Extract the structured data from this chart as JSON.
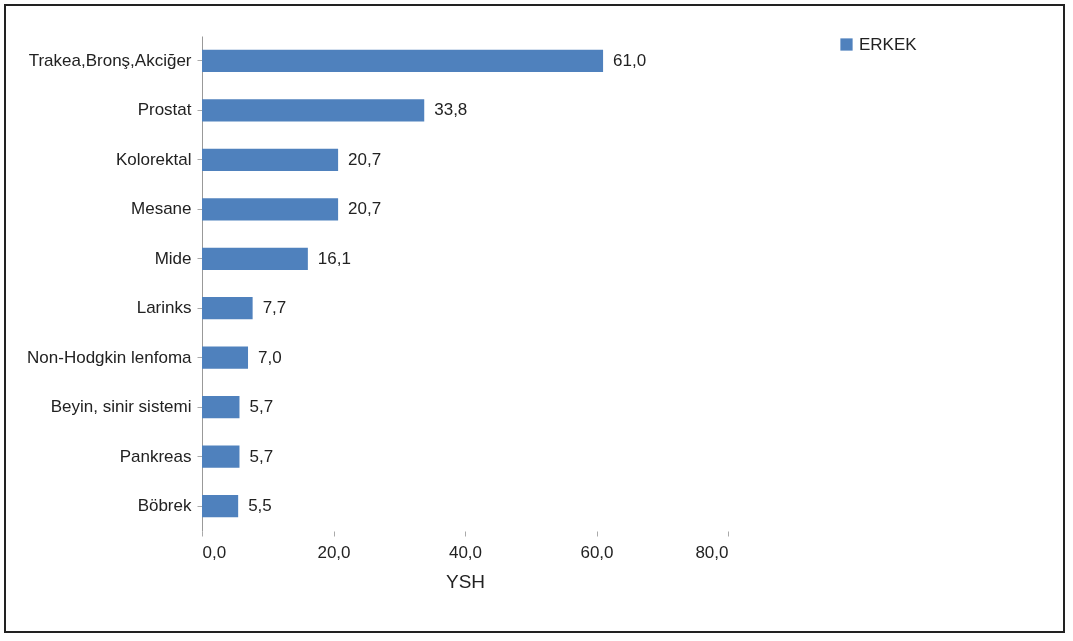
{
  "chart_data": {
    "type": "bar",
    "orientation": "horizontal",
    "xlabel": "YSH",
    "categories": [
      "Trakea,Bronş,Akciğer",
      "Prostat",
      "Kolorektal",
      "Mesane",
      "Mide",
      "Larinks",
      "Non-Hodgkin lenfoma",
      "Beyin, sinir sistemi",
      "Pankreas",
      "Böbrek"
    ],
    "series": [
      {
        "name": "ERKEK",
        "color": "#4f81bd",
        "values": [
          61.0,
          33.8,
          20.7,
          20.7,
          16.1,
          7.7,
          7.0,
          5.7,
          5.7,
          5.5
        ],
        "value_labels": [
          "61,0",
          "33,8",
          "20,7",
          "20,7",
          "16,1",
          "7,7",
          "7,0",
          "5,7",
          "5,7",
          "5,5"
        ]
      }
    ],
    "xlim": [
      0,
      80
    ],
    "xticks": [
      {
        "value": 0,
        "label": "0,0"
      },
      {
        "value": 20,
        "label": "20,0"
      },
      {
        "value": 40,
        "label": "40,0"
      },
      {
        "value": 60,
        "label": "60,0"
      },
      {
        "value": 80,
        "label": "80,0"
      }
    ],
    "grid": false,
    "legend": "right"
  }
}
